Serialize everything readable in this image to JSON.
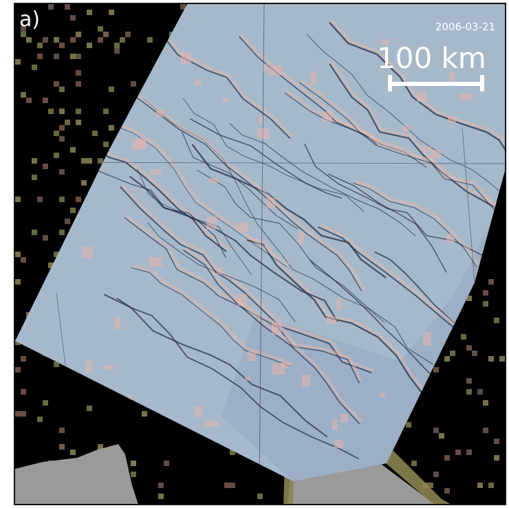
{
  "panel_label": "a)",
  "date": "2006-03-21",
  "scale_bar": {
    "label": "100 km",
    "length_km": 100
  },
  "colors": {
    "background": "#000000",
    "sea_ice": "#a9bccd",
    "lead_dark": "#23314a",
    "lead_highlight": "#e8b8a8",
    "land_mask": "#9a9a9a",
    "coast_olive": "#7d7a4a",
    "coast_brown": "#7a5a4e"
  }
}
